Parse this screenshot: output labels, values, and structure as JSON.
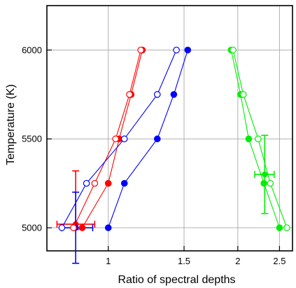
{
  "chart_data": {
    "type": "scatter",
    "title": "",
    "xlabel": "Ratio of spectral depths",
    "ylabel": "Temperature (K)",
    "x_scale": "log",
    "xlim": [
      0.72,
      2.68
    ],
    "ylim": [
      4870,
      6250
    ],
    "x_ticks": [
      1,
      1.5,
      2,
      2.5
    ],
    "x_tick_labels": [
      "1",
      "1.5",
      "2",
      "2.5"
    ],
    "y_ticks": [
      5000,
      5500,
      6000
    ],
    "y_tick_labels": [
      "5000",
      "5500",
      "6000"
    ],
    "grid": true,
    "legend": "none",
    "colors": {
      "red": "#ff0000",
      "blue": "#0000ff",
      "green": "#00ee00"
    },
    "series": [
      {
        "color": "red",
        "marker": "filled",
        "points": [
          [
            0.87,
            5000
          ],
          [
            1.0,
            5250
          ],
          [
            1.06,
            5500
          ],
          [
            1.13,
            5750
          ],
          [
            1.2,
            6000
          ]
        ]
      },
      {
        "color": "red",
        "marker": "open",
        "points": [
          [
            0.83,
            5000
          ],
          [
            0.93,
            5250
          ],
          [
            1.04,
            5500
          ],
          [
            1.12,
            5750
          ],
          [
            1.19,
            6000
          ]
        ]
      },
      {
        "color": "blue",
        "marker": "filled",
        "points": [
          [
            1.0,
            5000
          ],
          [
            1.09,
            5250
          ],
          [
            1.3,
            5500
          ],
          [
            1.42,
            5750
          ],
          [
            1.53,
            6000
          ]
        ]
      },
      {
        "color": "blue",
        "marker": "open",
        "points": [
          [
            0.78,
            5000
          ],
          [
            0.89,
            5250
          ],
          [
            1.09,
            5500
          ],
          [
            1.3,
            5750
          ],
          [
            1.44,
            6000
          ]
        ]
      },
      {
        "color": "green",
        "marker": "filled",
        "points": [
          [
            2.5,
            5000
          ],
          [
            2.3,
            5250
          ],
          [
            2.12,
            5500
          ],
          [
            2.03,
            5750
          ],
          [
            1.93,
            6000
          ]
        ]
      },
      {
        "color": "green",
        "marker": "open",
        "points": [
          [
            2.6,
            5000
          ],
          [
            2.38,
            5250
          ],
          [
            2.23,
            5500
          ],
          [
            2.06,
            5750
          ],
          [
            1.95,
            6000
          ]
        ]
      }
    ],
    "error_bars": [
      {
        "color": "red",
        "x": 0.84,
        "y": 5020,
        "x_err": [
          0.76,
          0.93
        ],
        "y_err": [
          4990,
          5320
        ]
      },
      {
        "color": "blue",
        "x": 0.84,
        "y": 5000,
        "x_err": [
          0.78,
          0.92
        ],
        "y_err": [
          4800,
          5200
        ]
      },
      {
        "color": "green",
        "x": 2.31,
        "y": 5300,
        "x_err": [
          2.19,
          2.43
        ],
        "y_err": [
          5080,
          5520
        ]
      }
    ]
  }
}
